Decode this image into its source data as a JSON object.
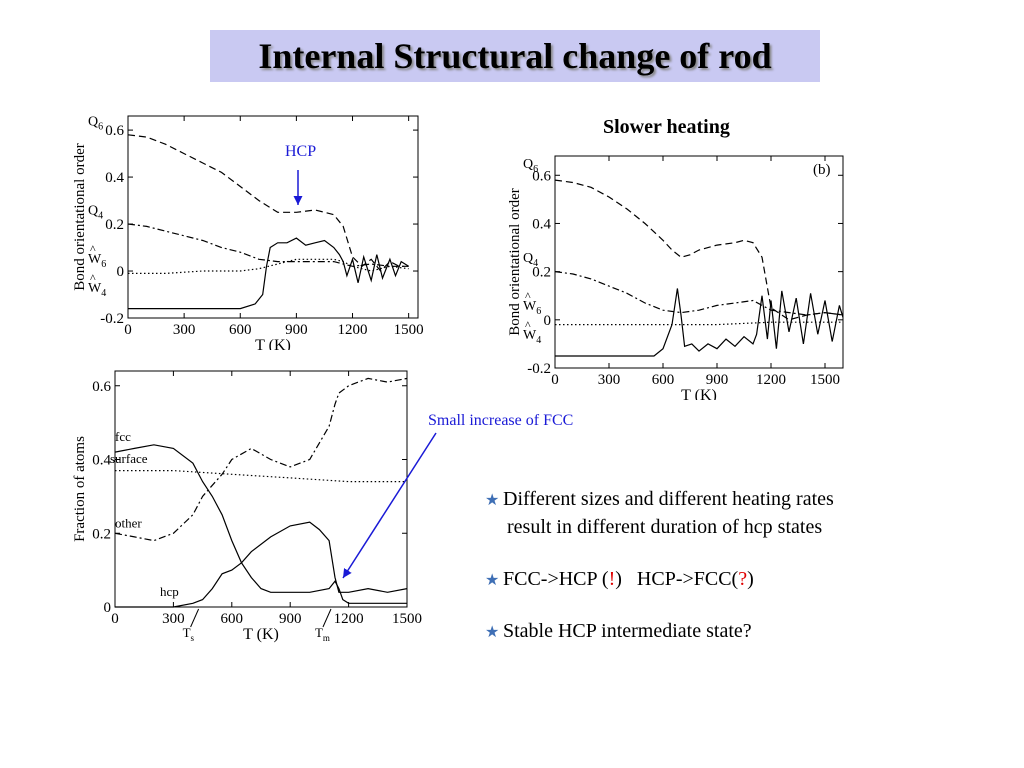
{
  "slide": {
    "title": "Internal Structural change of rod",
    "slower_heating": "Slower heating",
    "hcp_annotation": "HCP",
    "fcc_annotation": "Small increase of FCC",
    "bullets": [
      {
        "line1": "Different sizes and different heating rates",
        "line2": "result in different duration of hcp states"
      },
      {
        "pre": "FCC->HCP (",
        "mark1": "!",
        "mid": ")   HCP->FCC(",
        "mark2": "?",
        "post": ")"
      },
      {
        "text": "Stable HCP intermediate state?"
      }
    ],
    "colors": {
      "title_bg": "#c9c9f2",
      "annotation_blue": "#1a1ad6",
      "accent_red": "#e00000",
      "star": "#3f6fb5"
    }
  },
  "chart_data": [
    {
      "type": "line",
      "xlabel": "T (K)",
      "ylabel": "Bond orientational order",
      "xticks": [
        "0",
        "300",
        "600",
        "900",
        "1200",
        "1500"
      ],
      "yticks": [
        "-0.2",
        "0",
        "0.2",
        "0.4",
        "0.6"
      ],
      "xlim": [
        0,
        1550
      ],
      "ylim": [
        -0.2,
        0.66
      ],
      "series": [
        {
          "name": "Q6",
          "label_main": "Q",
          "label_sub": "6",
          "style": "dashed",
          "x": [
            0,
            100,
            200,
            300,
            400,
            500,
            600,
            700,
            800,
            900,
            1000,
            1050,
            1100,
            1150,
            1200,
            1250,
            1300,
            1350,
            1400,
            1450,
            1500
          ],
          "y": [
            0.58,
            0.57,
            0.54,
            0.5,
            0.46,
            0.42,
            0.36,
            0.3,
            0.25,
            0.25,
            0.26,
            0.25,
            0.24,
            0.19,
            0.06,
            0.02,
            0.05,
            0.0,
            0.04,
            0.02,
            0.02
          ]
        },
        {
          "name": "Q4",
          "label_main": "Q",
          "label_sub": "4",
          "style": "dashdot",
          "x": [
            0,
            100,
            200,
            300,
            400,
            500,
            600,
            700,
            800,
            900,
            1000,
            1100,
            1150,
            1200,
            1300,
            1400,
            1500
          ],
          "y": [
            0.2,
            0.19,
            0.17,
            0.15,
            0.13,
            0.1,
            0.08,
            0.05,
            0.04,
            0.04,
            0.04,
            0.04,
            0.03,
            0.02,
            0.03,
            0.02,
            0.02
          ]
        },
        {
          "name": "W6",
          "label_main": "W",
          "label_sub": "6",
          "style": "dotted",
          "x": [
            0,
            200,
            400,
            600,
            700,
            800,
            900,
            1000,
            1100,
            1150,
            1200,
            1300,
            1400,
            1500
          ],
          "y": [
            -0.01,
            -0.01,
            0.0,
            0.0,
            0.01,
            0.03,
            0.05,
            0.05,
            0.05,
            0.04,
            0.02,
            0.0,
            0.02,
            0.01
          ]
        },
        {
          "name": "W4",
          "label_main": "W",
          "label_sub": "4",
          "style": "solid",
          "x": [
            0,
            200,
            400,
            600,
            680,
            720,
            740,
            760,
            800,
            850,
            900,
            950,
            1000,
            1050,
            1100,
            1130,
            1150,
            1170,
            1200,
            1230,
            1260,
            1300,
            1330,
            1360,
            1400,
            1430,
            1460,
            1500
          ],
          "y": [
            -0.16,
            -0.16,
            -0.16,
            -0.16,
            -0.14,
            -0.1,
            0.02,
            0.1,
            0.12,
            0.12,
            0.14,
            0.11,
            0.12,
            0.13,
            0.1,
            0.07,
            0.04,
            -0.02,
            0.05,
            -0.05,
            0.06,
            -0.04,
            0.07,
            -0.03,
            0.05,
            -0.02,
            0.04,
            0.02
          ]
        }
      ]
    },
    {
      "type": "line",
      "xlabel": "T (K)",
      "ylabel": "Bond orientational order",
      "panel_label": "(b)",
      "xticks": [
        "0",
        "300",
        "600",
        "900",
        "1200",
        "1500"
      ],
      "yticks": [
        "-0.2",
        "0",
        "0.2",
        "0.4",
        "0.6"
      ],
      "xlim": [
        0,
        1600
      ],
      "ylim": [
        -0.2,
        0.68
      ],
      "series": [
        {
          "name": "Q6",
          "label_main": "Q",
          "label_sub": "6",
          "style": "dashed",
          "x": [
            0,
            100,
            200,
            300,
            400,
            500,
            600,
            650,
            700,
            750,
            800,
            900,
            1000,
            1050,
            1100,
            1150,
            1200,
            1300,
            1400,
            1500,
            1600
          ],
          "y": [
            0.58,
            0.57,
            0.55,
            0.51,
            0.46,
            0.4,
            0.33,
            0.29,
            0.26,
            0.27,
            0.29,
            0.31,
            0.32,
            0.33,
            0.32,
            0.26,
            0.05,
            0.0,
            0.02,
            0.03,
            0.02
          ]
        },
        {
          "name": "Q4",
          "label_main": "Q",
          "label_sub": "4",
          "style": "dashdot",
          "x": [
            0,
            100,
            200,
            300,
            400,
            500,
            600,
            700,
            800,
            900,
            1000,
            1100,
            1200,
            1300,
            1400,
            1500,
            1600
          ],
          "y": [
            0.2,
            0.19,
            0.17,
            0.14,
            0.11,
            0.07,
            0.04,
            0.03,
            0.04,
            0.06,
            0.07,
            0.08,
            0.04,
            0.03,
            0.02,
            0.03,
            0.02
          ]
        },
        {
          "name": "W6",
          "label_main": "W",
          "label_sub": "6",
          "style": "dotted",
          "x": [
            0,
            300,
            600,
            900,
            1200,
            1500,
            1600
          ],
          "y": [
            -0.02,
            -0.02,
            -0.02,
            -0.02,
            -0.01,
            -0.01,
            -0.01
          ]
        },
        {
          "name": "W4",
          "label_main": "W",
          "label_sub": "4",
          "style": "solid",
          "x": [
            0,
            200,
            400,
            550,
            600,
            650,
            680,
            700,
            720,
            760,
            800,
            850,
            900,
            950,
            1000,
            1050,
            1100,
            1120,
            1150,
            1180,
            1200,
            1230,
            1260,
            1300,
            1340,
            1380,
            1420,
            1460,
            1500,
            1540,
            1580,
            1600
          ],
          "y": [
            -0.15,
            -0.15,
            -0.15,
            -0.15,
            -0.12,
            -0.02,
            0.13,
            0.02,
            -0.11,
            -0.1,
            -0.13,
            -0.1,
            -0.12,
            -0.08,
            -0.11,
            -0.07,
            -0.1,
            -0.06,
            0.1,
            -0.08,
            0.08,
            -0.12,
            0.12,
            -0.05,
            0.09,
            -0.1,
            0.11,
            -0.06,
            0.08,
            -0.09,
            0.06,
            0.01
          ]
        }
      ]
    },
    {
      "type": "line",
      "xlabel": "T (K)",
      "ylabel": "Fraction of atoms",
      "xticks": [
        "0",
        "300",
        "600",
        "900",
        "1200",
        "1500"
      ],
      "yticks": [
        "0",
        "0.2",
        "0.4",
        "0.6"
      ],
      "xlim": [
        0,
        1500
      ],
      "ylim": [
        0,
        0.64
      ],
      "marker_labels": [
        {
          "main": "T",
          "sub": "s",
          "x": 450
        },
        {
          "main": "T",
          "sub": "m",
          "x": 1130
        }
      ],
      "series": [
        {
          "name": "fcc",
          "label": "fcc",
          "style": "solid",
          "x": [
            0,
            100,
            200,
            300,
            400,
            450,
            500,
            550,
            600,
            650,
            700,
            750,
            800,
            900,
            1000,
            1100,
            1130,
            1150,
            1170,
            1200,
            1300,
            1400,
            1500
          ],
          "y": [
            0.42,
            0.43,
            0.44,
            0.43,
            0.39,
            0.34,
            0.3,
            0.25,
            0.18,
            0.12,
            0.08,
            0.05,
            0.04,
            0.04,
            0.04,
            0.05,
            0.07,
            0.05,
            0.02,
            0.01,
            0.01,
            0.01,
            0.01
          ]
        },
        {
          "name": "surface",
          "label": "surface",
          "style": "dotted",
          "x": [
            0,
            300,
            600,
            900,
            1200,
            1500
          ],
          "y": [
            0.37,
            0.37,
            0.36,
            0.35,
            0.34,
            0.34
          ]
        },
        {
          "name": "other",
          "label": "other",
          "style": "dashdot",
          "x": [
            0,
            100,
            200,
            300,
            400,
            450,
            500,
            550,
            600,
            700,
            800,
            900,
            1000,
            1100,
            1130,
            1150,
            1200,
            1300,
            1400,
            1500
          ],
          "y": [
            0.2,
            0.19,
            0.18,
            0.2,
            0.25,
            0.3,
            0.33,
            0.36,
            0.4,
            0.43,
            0.4,
            0.38,
            0.4,
            0.49,
            0.55,
            0.58,
            0.6,
            0.62,
            0.61,
            0.62
          ]
        },
        {
          "name": "hcp",
          "label": "hcp",
          "style": "solid",
          "x": [
            0,
            100,
            200,
            300,
            400,
            450,
            500,
            550,
            600,
            650,
            700,
            800,
            900,
            1000,
            1050,
            1100,
            1130,
            1150,
            1200,
            1300,
            1400,
            1500
          ],
          "y": [
            0.0,
            0.0,
            0.0,
            0.0,
            0.01,
            0.02,
            0.05,
            0.09,
            0.1,
            0.12,
            0.15,
            0.19,
            0.22,
            0.23,
            0.21,
            0.18,
            0.08,
            0.04,
            0.04,
            0.05,
            0.04,
            0.05
          ]
        }
      ]
    }
  ]
}
